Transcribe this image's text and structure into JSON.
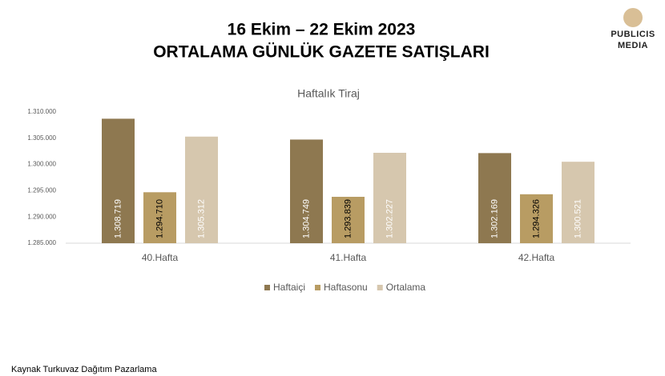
{
  "header": {
    "title_line1": "16 Ekim – 22 Ekim 2023",
    "title_line2": "ORTALAMA GÜNLÜK GAZETE SATIŞLARI",
    "logo_line1": "PUBLICIS",
    "logo_line2": "MEDIA"
  },
  "chart_data": {
    "type": "bar",
    "title": "Haftalık Tiraj",
    "categories": [
      "40.Hafta",
      "41.Hafta",
      "42.Hafta"
    ],
    "series": [
      {
        "name": "Haftaiçi",
        "color": "#8e7850",
        "values": [
          1308719,
          1304749,
          1302169
        ],
        "value_labels": [
          "1.308.719",
          "1.304.749",
          "1.302.169"
        ]
      },
      {
        "name": "Haftasonu",
        "color": "#b89c63",
        "values": [
          1294710,
          1293839,
          1294326
        ],
        "value_labels": [
          "1.294.710",
          "1.293.839",
          "1.294.326"
        ]
      },
      {
        "name": "Ortalama",
        "color": "#d6c7ae",
        "values": [
          1305312,
          1302227,
          1300521
        ],
        "value_labels": [
          "1.305.312",
          "1.302.227",
          "1.300.521"
        ]
      }
    ],
    "ylim": [
      1285000,
      1310000
    ],
    "yticks": [
      {
        "value": 1285000,
        "label": "1.285.000"
      },
      {
        "value": 1290000,
        "label": "1.290.000"
      },
      {
        "value": 1295000,
        "label": "1.295.000"
      },
      {
        "value": 1300000,
        "label": "1.300.000"
      },
      {
        "value": 1305000,
        "label": "1.305.000"
      },
      {
        "value": 1310000,
        "label": "1.310.000"
      }
    ],
    "grid": false,
    "legend": "bottom"
  },
  "footer": {
    "source": "Kaynak Turkuvaz Dağıtım Pazarlama"
  }
}
